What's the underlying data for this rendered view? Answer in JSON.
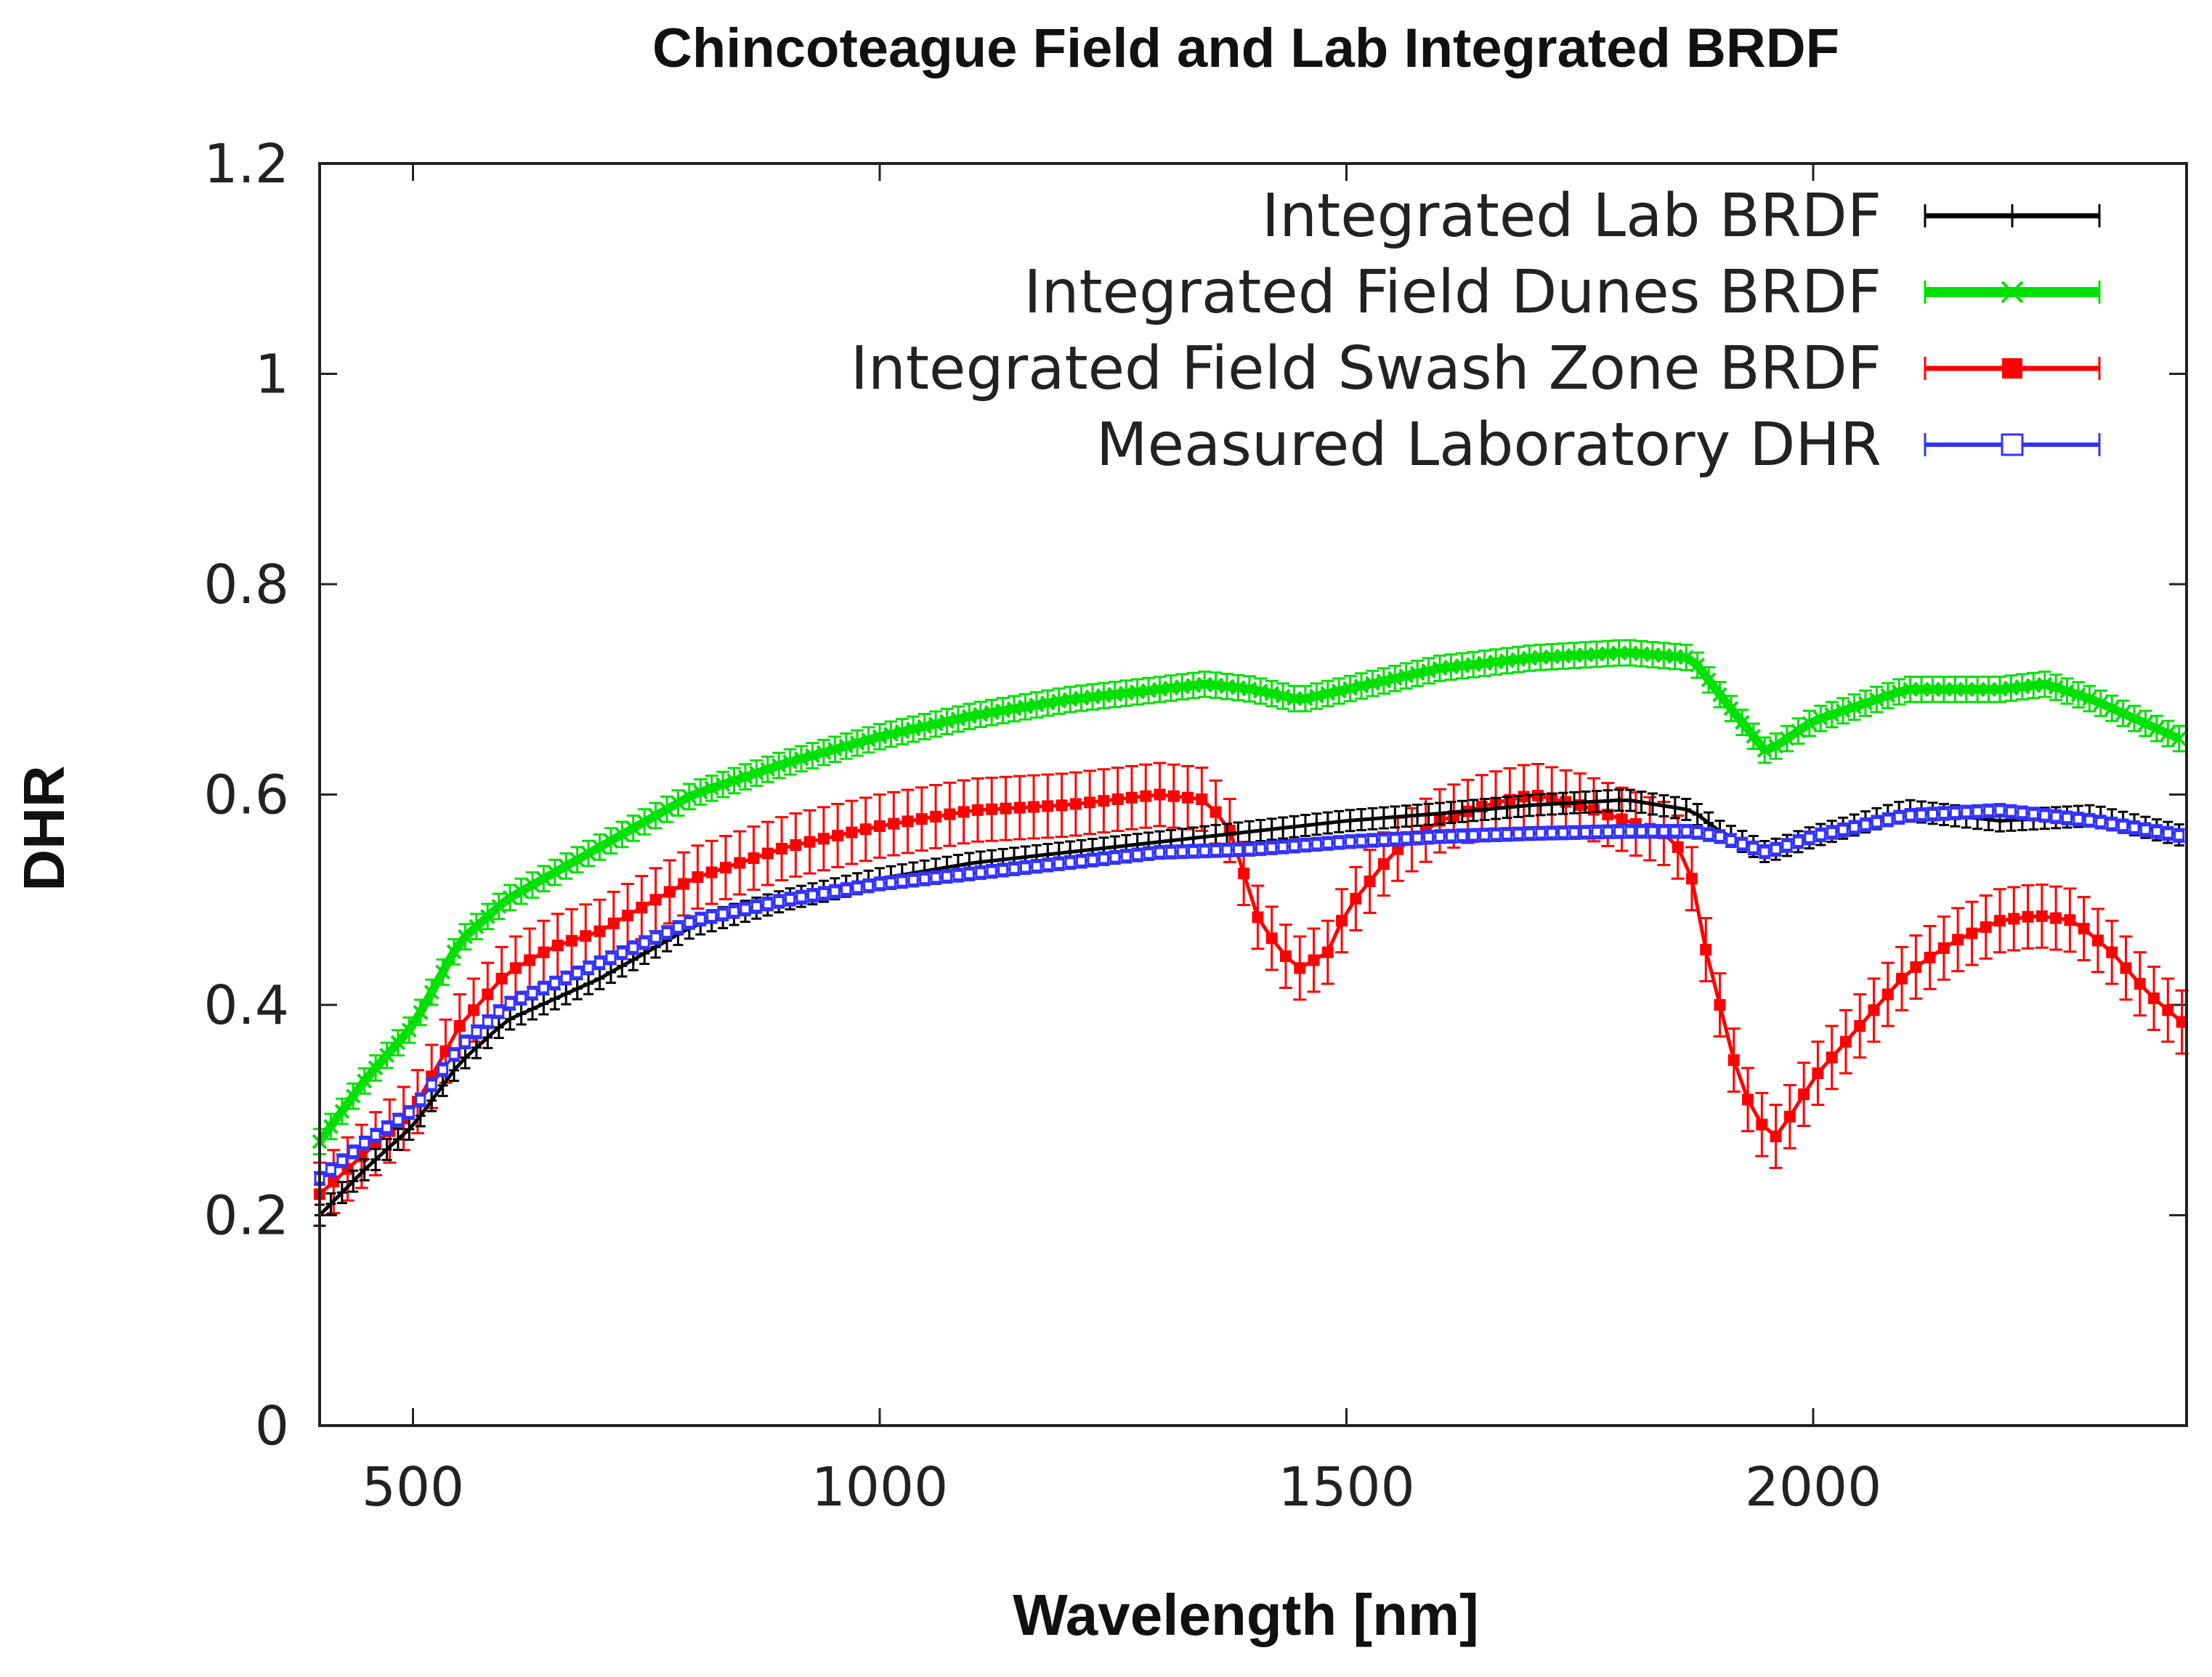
{
  "chart_data": {
    "type": "line",
    "title": "Chincoteague Field and Lab Integrated BRDF",
    "xlabel": "Wavelength [nm]",
    "ylabel": "DHR",
    "xlim": [
      400,
      2400
    ],
    "ylim": [
      0,
      1.2
    ],
    "xticks": [
      500,
      1000,
      1500,
      2000
    ],
    "xtick_labels": [
      "500",
      "1000",
      "1500",
      "2000"
    ],
    "yticks": [
      0,
      0.2,
      0.4,
      0.6,
      0.8,
      1,
      1.2
    ],
    "ytick_labels": [
      "0",
      "0.2",
      "0.4",
      "0.6",
      "0.8",
      "1",
      "1.2"
    ],
    "legend_position": "top-right",
    "series": [
      {
        "name": "Integrated Lab BRDF",
        "color": "#000000",
        "marker": "plus",
        "errorbar": 0.01,
        "x": [
          400,
          450,
          500,
          550,
          600,
          650,
          700,
          750,
          800,
          900,
          1000,
          1100,
          1200,
          1300,
          1400,
          1500,
          1600,
          1700,
          1800,
          1870,
          1900,
          1950,
          2000,
          2100,
          2200,
          2300,
          2400
        ],
        "y": [
          0.2,
          0.245,
          0.285,
          0.345,
          0.385,
          0.405,
          0.425,
          0.45,
          0.475,
          0.5,
          0.52,
          0.535,
          0.545,
          0.555,
          0.565,
          0.575,
          0.582,
          0.59,
          0.595,
          0.585,
          0.565,
          0.545,
          0.56,
          0.585,
          0.575,
          0.58,
          0.56
        ]
      },
      {
        "name": "Integrated Field Dunes BRDF",
        "color": "#00e000",
        "marker": "x",
        "errorbar": 0.012,
        "x": [
          400,
          450,
          500,
          550,
          600,
          700,
          800,
          900,
          1000,
          1100,
          1200,
          1300,
          1350,
          1400,
          1450,
          1500,
          1600,
          1700,
          1800,
          1870,
          1900,
          1950,
          2000,
          2100,
          2200,
          2250,
          2300,
          2400
        ],
        "y": [
          0.27,
          0.33,
          0.38,
          0.46,
          0.5,
          0.55,
          0.6,
          0.63,
          0.655,
          0.675,
          0.69,
          0.7,
          0.705,
          0.7,
          0.69,
          0.7,
          0.72,
          0.73,
          0.735,
          0.73,
          0.695,
          0.64,
          0.67,
          0.7,
          0.7,
          0.705,
          0.69,
          0.65
        ]
      },
      {
        "name": "Integrated Field Swash Zone BRDF",
        "color": "#ff0000",
        "marker": "filled-square",
        "errorbar": 0.03,
        "x": [
          400,
          450,
          500,
          550,
          600,
          650,
          700,
          800,
          900,
          1000,
          1100,
          1200,
          1300,
          1350,
          1380,
          1400,
          1430,
          1450,
          1480,
          1500,
          1550,
          1600,
          1650,
          1700,
          1750,
          1800,
          1850,
          1870,
          1880,
          1920,
          1940,
          1960,
          1980,
          2000,
          2050,
          2100,
          2150,
          2200,
          2240,
          2280,
          2320,
          2360,
          2400
        ],
        "y": [
          0.22,
          0.26,
          0.3,
          0.38,
          0.43,
          0.455,
          0.47,
          0.52,
          0.55,
          0.57,
          0.585,
          0.59,
          0.6,
          0.595,
          0.56,
          0.49,
          0.45,
          0.435,
          0.45,
          0.49,
          0.545,
          0.575,
          0.59,
          0.6,
          0.59,
          0.575,
          0.56,
          0.52,
          0.47,
          0.33,
          0.29,
          0.275,
          0.3,
          0.33,
          0.38,
          0.43,
          0.46,
          0.48,
          0.485,
          0.48,
          0.45,
          0.41,
          0.38
        ]
      },
      {
        "name": "Measured Laboratory DHR",
        "color": "#3333ff",
        "marker": "open-square",
        "errorbar": 0.006,
        "x": [
          400,
          450,
          500,
          550,
          600,
          650,
          700,
          750,
          800,
          900,
          1000,
          1100,
          1200,
          1300,
          1400,
          1500,
          1600,
          1700,
          1800,
          1870,
          1900,
          1950,
          2000,
          2100,
          2200,
          2300,
          2400
        ],
        "y": [
          0.235,
          0.27,
          0.3,
          0.36,
          0.4,
          0.42,
          0.44,
          0.46,
          0.48,
          0.5,
          0.515,
          0.525,
          0.535,
          0.545,
          0.548,
          0.555,
          0.56,
          0.563,
          0.565,
          0.565,
          0.56,
          0.545,
          0.56,
          0.58,
          0.585,
          0.575,
          0.56
        ]
      }
    ]
  }
}
